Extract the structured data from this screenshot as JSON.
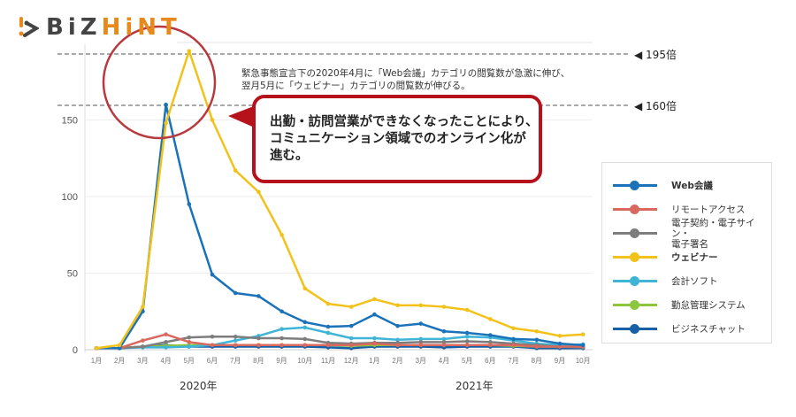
{
  "logo": {
    "part1": "BiZ",
    "part2": "HiNT"
  },
  "annotation": {
    "note": "緊急事態宣言下の2020年4月に「Web会議」カテゴリの閲覧数が急激に伸び、\n翌月5月に「ウェビナー」カテゴリの閲覧数が伸びる。",
    "callout": "出勤・訪問営業ができなくなったことにより、\nコミュニケーション領域でのオンライン化が\n進む。",
    "ref_lines": [
      {
        "value": 195,
        "label": "◀ 195倍"
      },
      {
        "value": 160,
        "label": "◀ 160倍"
      }
    ]
  },
  "chart_data": {
    "type": "line",
    "categories": [
      "1月",
      "2月",
      "3月",
      "4月",
      "5月",
      "6月",
      "7月",
      "8月",
      "9月",
      "10月",
      "11月",
      "12月",
      "1月",
      "2月",
      "3月",
      "4月",
      "5月",
      "6月",
      "7月",
      "8月",
      "9月",
      "10月"
    ],
    "year_labels": [
      "2020年",
      "2021年"
    ],
    "yticks": [
      0,
      50,
      100,
      150
    ],
    "ylim": [
      0,
      200
    ],
    "grid": true,
    "legend_position": "right",
    "series": [
      {
        "name": "Web会議",
        "color": "#1a72b8",
        "values": [
          1,
          1,
          25,
          160,
          95,
          49,
          37,
          35,
          25,
          18,
          15,
          15.5,
          23,
          15.5,
          17,
          12,
          11,
          9.5,
          7,
          6.5,
          4,
          3
        ]
      },
      {
        "name": "リモートアクセス",
        "color": "#d9685e",
        "values": [
          1,
          1,
          6,
          10,
          5,
          3,
          3,
          3,
          3,
          3,
          3,
          3,
          4,
          3,
          3,
          3,
          3,
          3,
          3,
          2,
          2,
          2
        ]
      },
      {
        "name": "電子契約・電子サイン・\n電子署名",
        "color": "#7d7d7d",
        "values": [
          1,
          1,
          2,
          5,
          8,
          8.5,
          8.5,
          7.5,
          7.5,
          7,
          4.5,
          4,
          4.5,
          4.5,
          5,
          5,
          5.5,
          5,
          4,
          3,
          2,
          1.5
        ]
      },
      {
        "name": "ウェビナー",
        "color": "#f2c21b",
        "values": [
          1,
          3,
          28,
          148,
          195,
          150,
          117,
          103,
          75,
          40,
          30,
          28,
          33,
          29,
          29,
          28,
          26,
          20,
          14,
          12,
          9,
          10
        ]
      },
      {
        "name": "会計ソフト",
        "color": "#3fb4d6",
        "values": [
          1,
          1,
          1.5,
          1.5,
          2,
          3,
          6,
          9,
          13.5,
          14.5,
          11,
          7.5,
          7.5,
          6.5,
          7,
          7,
          8.5,
          8,
          6,
          4,
          3,
          3.5
        ]
      },
      {
        "name": "勤怠管理システム",
        "color": "#8cc63f",
        "values": [
          1,
          1,
          2,
          2.5,
          3,
          3,
          3,
          3,
          3,
          3,
          3,
          2.5,
          3,
          3,
          3,
          3,
          3,
          3,
          2.5,
          2,
          2,
          2
        ]
      },
      {
        "name": "ビジネスチャット",
        "color": "#1660a8",
        "values": [
          1,
          1,
          2,
          3,
          2,
          2,
          2,
          2,
          2,
          2,
          1.5,
          1,
          2,
          2,
          2,
          1.5,
          2,
          2,
          2,
          1,
          1,
          1
        ]
      }
    ]
  }
}
